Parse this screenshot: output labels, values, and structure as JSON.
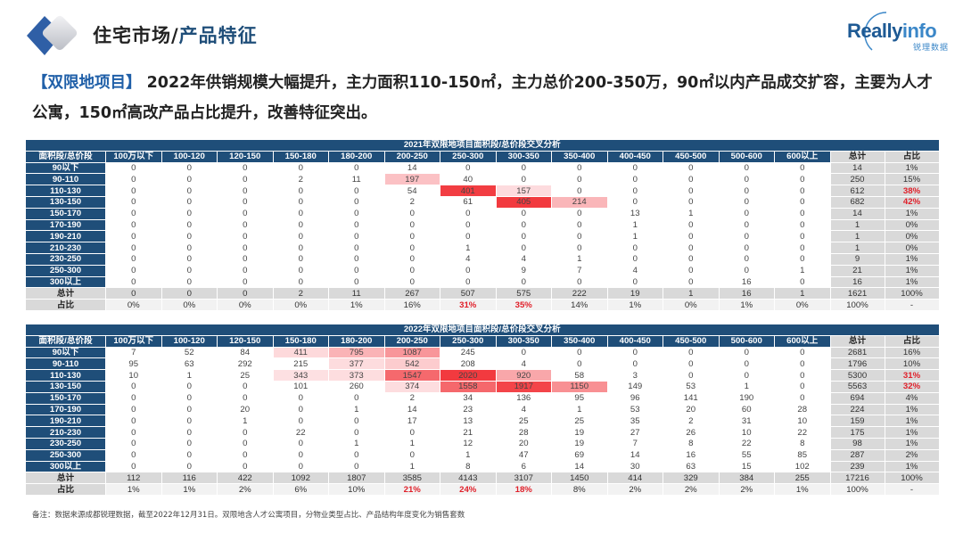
{
  "header": {
    "title_main": "住宅市场/",
    "title_accent": "产品特征",
    "brand_name_a": "Really",
    "brand_name_b": "info",
    "brand_cn": "锐理数据",
    "logo_icon": "double-diamond-chevron-icon"
  },
  "headline": {
    "tag": "【双限地项目】",
    "text": " 2022年供销规模大幅提升，主力面积110-150㎡，主力总价200-350万，90㎡以内产品成交扩容，主要为人才公寓，150㎡高改产品占比提升，改善特征突出。"
  },
  "colors": {
    "header_bg": "#1f4e79",
    "total_bg": "#d9d9d9",
    "emphasis_red": "#e0202a",
    "heat_max": "#f23a3f",
    "heat_min": "#fde0e2"
  },
  "tables": [
    {
      "title": "2021年双限地项目面积段/总价段交叉分析",
      "corner": "面积段/总价段",
      "columns": [
        "100万以下",
        "100-120",
        "120-150",
        "150-180",
        "180-200",
        "200-250",
        "250-300",
        "300-350",
        "350-400",
        "400-450",
        "450-500",
        "500-600",
        "600以上"
      ],
      "total_label": "总计",
      "share_label": "占比",
      "heat_threshold": 150,
      "rows": [
        {
          "label": "90以下",
          "values": [
            0,
            0,
            0,
            0,
            0,
            14,
            0,
            0,
            0,
            0,
            0,
            0,
            0
          ],
          "total": "14",
          "share": "1%"
        },
        {
          "label": "90-110",
          "values": [
            0,
            0,
            0,
            2,
            11,
            197,
            40,
            0,
            0,
            0,
            0,
            0,
            0
          ],
          "total": "250",
          "share": "15%"
        },
        {
          "label": "110-130",
          "values": [
            0,
            0,
            0,
            0,
            0,
            54,
            401,
            157,
            0,
            0,
            0,
            0,
            0
          ],
          "total": "612",
          "share": "38%"
        },
        {
          "label": "130-150",
          "values": [
            0,
            0,
            0,
            0,
            0,
            2,
            61,
            405,
            214,
            0,
            0,
            0,
            0
          ],
          "total": "682",
          "share": "42%"
        },
        {
          "label": "150-170",
          "values": [
            0,
            0,
            0,
            0,
            0,
            0,
            0,
            0,
            0,
            13,
            1,
            0,
            0
          ],
          "total": "14",
          "share": "1%"
        },
        {
          "label": "170-190",
          "values": [
            0,
            0,
            0,
            0,
            0,
            0,
            0,
            0,
            0,
            1,
            0,
            0,
            0
          ],
          "total": "1",
          "share": "0%"
        },
        {
          "label": "190-210",
          "values": [
            0,
            0,
            0,
            0,
            0,
            0,
            0,
            0,
            0,
            1,
            0,
            0,
            0
          ],
          "total": "1",
          "share": "0%"
        },
        {
          "label": "210-230",
          "values": [
            0,
            0,
            0,
            0,
            0,
            0,
            1,
            0,
            0,
            0,
            0,
            0,
            0
          ],
          "total": "1",
          "share": "0%"
        },
        {
          "label": "230-250",
          "values": [
            0,
            0,
            0,
            0,
            0,
            0,
            4,
            4,
            1,
            0,
            0,
            0,
            0
          ],
          "total": "9",
          "share": "1%"
        },
        {
          "label": "250-300",
          "values": [
            0,
            0,
            0,
            0,
            0,
            0,
            0,
            9,
            7,
            4,
            0,
            0,
            1
          ],
          "total": "21",
          "share": "1%"
        },
        {
          "label": "300以上",
          "values": [
            0,
            0,
            0,
            0,
            0,
            0,
            0,
            0,
            0,
            0,
            0,
            16,
            0
          ],
          "total": "16",
          "share": "1%"
        }
      ],
      "totals": [
        "0",
        "0",
        "0",
        "2",
        "11",
        "267",
        "507",
        "575",
        "222",
        "19",
        "1",
        "16",
        "1",
        "1621",
        "100%"
      ],
      "shares": [
        "0%",
        "0%",
        "0%",
        "0%",
        "1%",
        "16%",
        "31%",
        "35%",
        "14%",
        "1%",
        "0%",
        "1%",
        "0%",
        "100%",
        "-"
      ],
      "emphasized_row_shares": [
        "38%",
        "42%"
      ],
      "emphasized_col_shares": [
        "31%",
        "35%"
      ]
    },
    {
      "title": "2022年双限地项目面积段/总价段交叉分析",
      "corner": "面积段/总价段",
      "columns": [
        "100万以下",
        "100-120",
        "120-150",
        "150-180",
        "180-200",
        "200-250",
        "250-300",
        "300-350",
        "350-400",
        "400-450",
        "450-500",
        "500-600",
        "600以上"
      ],
      "total_label": "总计",
      "share_label": "占比",
      "heat_threshold": 340,
      "rows": [
        {
          "label": "90以下",
          "values": [
            7,
            52,
            84,
            411,
            795,
            1087,
            245,
            0,
            0,
            0,
            0,
            0,
            0
          ],
          "total": "2681",
          "share": "16%"
        },
        {
          "label": "90-110",
          "values": [
            95,
            63,
            292,
            215,
            377,
            542,
            208,
            4,
            0,
            0,
            0,
            0,
            0
          ],
          "total": "1796",
          "share": "10%"
        },
        {
          "label": "110-130",
          "values": [
            10,
            1,
            25,
            343,
            373,
            1547,
            2020,
            920,
            58,
            3,
            0,
            0,
            0
          ],
          "total": "5300",
          "share": "31%"
        },
        {
          "label": "130-150",
          "values": [
            0,
            0,
            0,
            101,
            260,
            374,
            1558,
            1917,
            1150,
            149,
            53,
            1,
            0
          ],
          "total": "5563",
          "share": "32%"
        },
        {
          "label": "150-170",
          "values": [
            0,
            0,
            0,
            0,
            0,
            2,
            34,
            136,
            95,
            96,
            141,
            190,
            0
          ],
          "total": "694",
          "share": "4%"
        },
        {
          "label": "170-190",
          "values": [
            0,
            0,
            20,
            0,
            1,
            14,
            23,
            4,
            1,
            53,
            20,
            60,
            28
          ],
          "total": "224",
          "share": "1%"
        },
        {
          "label": "190-210",
          "values": [
            0,
            0,
            1,
            0,
            0,
            17,
            13,
            25,
            25,
            35,
            2,
            31,
            10
          ],
          "total": "159",
          "share": "1%"
        },
        {
          "label": "210-230",
          "values": [
            0,
            0,
            0,
            22,
            0,
            0,
            21,
            28,
            19,
            27,
            26,
            10,
            22
          ],
          "total": "175",
          "share": "1%"
        },
        {
          "label": "230-250",
          "values": [
            0,
            0,
            0,
            0,
            1,
            1,
            12,
            20,
            19,
            7,
            8,
            22,
            8
          ],
          "total": "98",
          "share": "1%"
        },
        {
          "label": "250-300",
          "values": [
            0,
            0,
            0,
            0,
            0,
            0,
            1,
            47,
            69,
            14,
            16,
            55,
            85
          ],
          "total": "287",
          "share": "2%"
        },
        {
          "label": "300以上",
          "values": [
            0,
            0,
            0,
            0,
            0,
            1,
            8,
            6,
            14,
            30,
            63,
            15,
            102
          ],
          "total": "239",
          "share": "1%"
        }
      ],
      "totals": [
        "112",
        "116",
        "422",
        "1092",
        "1807",
        "3585",
        "4143",
        "3107",
        "1450",
        "414",
        "329",
        "384",
        "255",
        "17216",
        "100%"
      ],
      "shares": [
        "1%",
        "1%",
        "2%",
        "6%",
        "10%",
        "21%",
        "24%",
        "18%",
        "8%",
        "2%",
        "2%",
        "2%",
        "1%",
        "100%",
        "-"
      ],
      "emphasized_row_shares": [
        "31%",
        "32%"
      ],
      "emphasized_col_shares": [
        "21%",
        "24%",
        "18%"
      ]
    }
  ],
  "footnote": "备注：数据来源成都锐理数据，截至2022年12月31日。双限地含人才公寓项目，分物业类型占比、产品结构年度变化为销售套数"
}
